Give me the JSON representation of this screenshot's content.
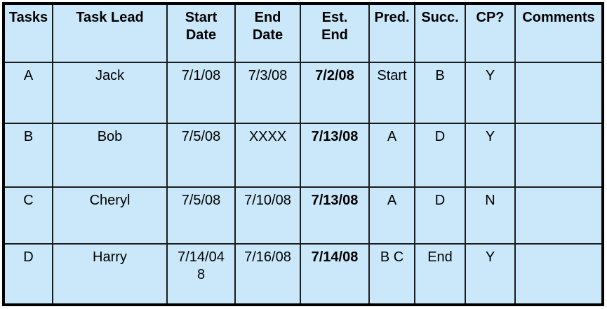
{
  "colors": {
    "cell_background": "#cbe8fa",
    "outer_border": "#000000",
    "inner_border": "#1c1c1c",
    "text": "#000000",
    "green": "#008000",
    "red": "#c00000",
    "navy": "#1f3864",
    "page_background": "#ffffff"
  },
  "chart_data": {
    "type": "table",
    "columns": [
      "Tasks",
      "Task Lead",
      "Start Date",
      "End Date",
      "Est. End",
      "Pred.",
      "Succ.",
      "CP?",
      "Comments"
    ],
    "rows": [
      [
        "A",
        "Jack",
        "7/1/08",
        "7/3/08",
        "7/2/08",
        "Start",
        "B",
        "Y",
        ""
      ],
      [
        "B",
        "Bob",
        "7/5/08",
        "XXXX",
        "7/13/08",
        "A",
        "D",
        "Y",
        ""
      ],
      [
        "C",
        "Cheryl",
        "7/5/08",
        "7/10/08",
        "7/13/08",
        "A",
        "D",
        "N",
        ""
      ],
      [
        "D",
        "Harry",
        "7/14/048",
        "7/16/08",
        "7/14/08",
        "B C",
        "End",
        "Y",
        ""
      ]
    ],
    "est_end_text_colors": [
      "green",
      "red",
      "navy",
      "green"
    ],
    "layout_hints": {
      "header_style": "bold, top-aligned, centered",
      "cell_style": "top-aligned, centered",
      "grid": "on"
    }
  },
  "table": {
    "headers": [
      {
        "label": "Tasks"
      },
      {
        "label": "Task Lead"
      },
      {
        "label": "Start\nDate"
      },
      {
        "label": "End\nDate"
      },
      {
        "label": "Est.\nEnd"
      },
      {
        "label": "Pred."
      },
      {
        "label": "Succ."
      },
      {
        "label": "CP?"
      },
      {
        "label": "Comments"
      }
    ],
    "rows": [
      {
        "task": "A",
        "lead": "Jack",
        "start": "7/1/08",
        "end": "7/3/08",
        "est_end": "7/2/08",
        "est_end_color": "green",
        "pred": "Start",
        "succ": "B",
        "cp": "Y",
        "comments": ""
      },
      {
        "task": "B",
        "lead": "Bob",
        "start": "7/5/08",
        "end": "XXXX",
        "est_end": "7/13/08",
        "est_end_color": "red",
        "pred": "A",
        "succ": "D",
        "cp": "Y",
        "comments": ""
      },
      {
        "task": "C",
        "lead": "Cheryl",
        "start": "7/5/08",
        "end": "7/10/08",
        "est_end": "7/13/08",
        "est_end_color": "navy",
        "pred": "A",
        "succ": "D",
        "cp": "N",
        "comments": ""
      },
      {
        "task": "D",
        "lead": "Harry",
        "start": "7/14/04\n8",
        "end": "7/16/08",
        "est_end": "7/14/08",
        "est_end_color": "green",
        "pred": "B C",
        "succ": "End",
        "cp": "Y",
        "comments": ""
      }
    ]
  }
}
